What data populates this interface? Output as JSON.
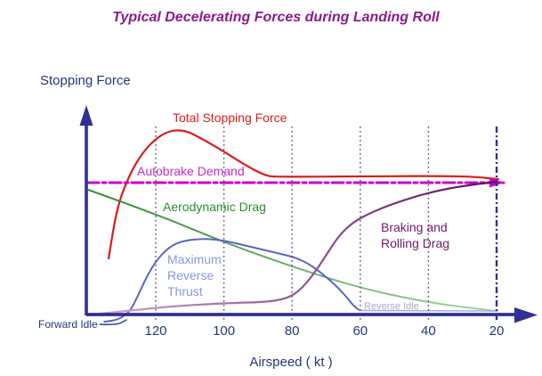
{
  "title": "Typical Decelerating Forces during Landing Roll",
  "y_axis_label": "Stopping Force",
  "x_axis_label": "Airspeed ( kt )",
  "labels": {
    "total": "Total Stopping Force",
    "autobrake": "Autobrake Demand",
    "aero": "Aerodynamic Drag",
    "max_reverse": [
      "Maximum",
      "Reverse",
      "Thrust"
    ],
    "braking": [
      "Braking and",
      "Rolling Drag"
    ],
    "reverse_idle": "Reverse Idle",
    "forward_idle": "Forward Idle"
  },
  "colors": {
    "title": "#8B1A8B",
    "axis": "#2E3192",
    "navy_text": "#24367A",
    "total_stopping_force": "#D61E1E",
    "autobrake_demand": "#CC00CC",
    "aerodynamic_drag": "#2E8B2E",
    "max_reverse_thrust": "#5964C8",
    "reverse_idle": "#ABABDC",
    "braking_rolling_drag": "#5E0D5E",
    "gridline": "#4A4A85"
  },
  "chart_data": {
    "type": "line",
    "title": "Typical Decelerating Forces during Landing Roll",
    "xlabel": "Airspeed ( kt )",
    "ylabel": "Stopping Force",
    "x_ticks": [
      120,
      100,
      80,
      60,
      40,
      20
    ],
    "x_axis_reversed": true,
    "x_range_kt": [
      140,
      17
    ],
    "y_range_relative_force": [
      -6,
      110
    ],
    "grid": "vertical dotted gridline at each tick; 20 kt line is navy dash-dot",
    "legend_position": "labels placed beside each curve",
    "series": [
      {
        "id": "total-stopping-force",
        "name": "Total Stopping Force",
        "color": "#D61E1E",
        "width": 2.2,
        "style": "solid",
        "points": [
          [
            133.8,
            30.4
          ],
          [
            132.5,
            45.9
          ],
          [
            131,
            59.4
          ],
          [
            128.9,
            70.5
          ],
          [
            126.3,
            80.7
          ],
          [
            123.1,
            89.4
          ],
          [
            120,
            95.2
          ],
          [
            117.1,
            98.6
          ],
          [
            114.5,
            100
          ],
          [
            110.9,
            99.5
          ],
          [
            106.9,
            95.7
          ],
          [
            100.9,
            89.4
          ],
          [
            93.9,
            81.2
          ],
          [
            88.1,
            75.4
          ],
          [
            84.7,
            74.6
          ],
          [
            61.3,
            74.9
          ],
          [
            40.4,
            75.1
          ],
          [
            27.3,
            74.9
          ],
          [
            19.5,
            73.4
          ]
        ]
      },
      {
        "id": "autobrake-demand",
        "name": "Autobrake Demand",
        "color": "#CC00CC",
        "width": 3,
        "style": "dash-dot",
        "arrow_end": true,
        "points": [
          [
            140.1,
            71.5
          ],
          [
            17.9,
            71.5
          ]
        ]
      },
      {
        "id": "aerodynamic-drag",
        "name": "Aerodynamic Drag",
        "color": "#2E8B2E",
        "color_end": "#A5D6A5",
        "width": 2,
        "style": "solid",
        "points": [
          [
            139.8,
            67.6
          ],
          [
            120,
            54.6
          ],
          [
            99.9,
            39.1
          ],
          [
            79.5,
            25.6
          ],
          [
            59.4,
            14
          ],
          [
            39.6,
            6.3
          ],
          [
            20,
            1.9
          ]
        ]
      },
      {
        "id": "maximum-reverse-thrust",
        "name": "Maximum Reverse Thrust",
        "color": "#5964C8",
        "width": 2,
        "style": "solid",
        "points": [
          [
            135.1,
            -3.9
          ],
          [
            132.3,
            -3.4
          ],
          [
            129.7,
            -1.4
          ],
          [
            127.6,
            1.9
          ],
          [
            126,
            7.2
          ],
          [
            124.4,
            13.5
          ],
          [
            122.3,
            21.7
          ],
          [
            119.7,
            29.5
          ],
          [
            116.6,
            35.7
          ],
          [
            113.5,
            39.1
          ],
          [
            109.8,
            40.6
          ],
          [
            105.1,
            41.1
          ],
          [
            99.9,
            40.1
          ],
          [
            92.1,
            36.7
          ],
          [
            84.2,
            33.3
          ],
          [
            79,
            30.9
          ],
          [
            75.1,
            27.5
          ],
          [
            71.2,
            22.2
          ],
          [
            67.5,
            16.4
          ],
          [
            64.1,
            9.7
          ],
          [
            62,
            4.8
          ],
          [
            60.5,
            2.7
          ]
        ]
      },
      {
        "id": "reverse-idle",
        "name": "Reverse Idle",
        "color": "#ABABDC",
        "width": 1.6,
        "style": "solid",
        "points": [
          [
            60.5,
            2.2
          ],
          [
            19.7,
            1.9
          ]
        ]
      },
      {
        "id": "braking-rolling-drag",
        "name": "Braking and Rolling Drag",
        "color": "#C9A6C9",
        "color_end": "#5E0D5E",
        "width": 2.2,
        "style": "solid",
        "points": [
          [
            136.4,
            0.5
          ],
          [
            126.5,
            2.4
          ],
          [
            113.5,
            4.8
          ],
          [
            97.8,
            6.3
          ],
          [
            87.4,
            6.8
          ],
          [
            81.6,
            8.7
          ],
          [
            78,
            12.6
          ],
          [
            74.1,
            20.8
          ],
          [
            70.1,
            31.9
          ],
          [
            66.2,
            43
          ],
          [
            62.3,
            49.8
          ],
          [
            57.1,
            55.1
          ],
          [
            50.6,
            59.9
          ],
          [
            42.7,
            64.7
          ],
          [
            34.9,
            68.1
          ],
          [
            27,
            70.5
          ],
          [
            20,
            72
          ]
        ]
      },
      {
        "id": "forward-idle-leader",
        "name": "Forward Idle",
        "color": "#2B3A9E",
        "width": 1.4,
        "style": "solid",
        "points": [
          [
            136.4,
            -5.3
          ],
          [
            131.5,
            -5.8
          ],
          [
            128.6,
            -2.9
          ]
        ]
      }
    ]
  }
}
